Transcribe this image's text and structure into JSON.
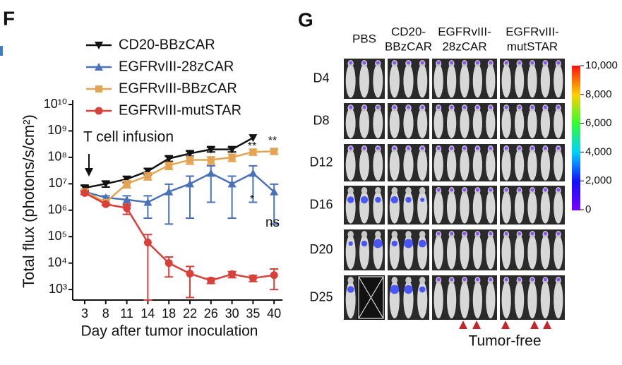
{
  "panel_f_label": "F",
  "chart_data": {
    "type": "line",
    "y_label": "Total flux (photons/s/cm²)",
    "x_label": "Day after tumor inoculation",
    "categories": [
      3,
      8,
      11,
      14,
      18,
      22,
      26,
      30,
      35,
      40
    ],
    "log_y": true,
    "ylim": [
      400,
      10000000000
    ],
    "yticks": [
      {
        "value": 1000,
        "label": "10³"
      },
      {
        "value": 10000,
        "label": "10⁴"
      },
      {
        "value": 100000,
        "label": "10⁵"
      },
      {
        "value": 1000000,
        "label": "10⁶"
      },
      {
        "value": 10000000,
        "label": "10⁷"
      },
      {
        "value": 100000000,
        "label": "10⁸"
      },
      {
        "value": 1000000000,
        "label": "10⁹"
      },
      {
        "value": 10000000000,
        "label": "10¹⁰"
      }
    ],
    "series": [
      {
        "name": "CD20-BBzCAR",
        "color": "#111111",
        "marker": "triangle-down",
        "values": [
          7000000,
          10000000,
          15000000,
          30000000,
          90000000,
          140000000,
          200000000,
          200000000,
          550000000,
          null
        ],
        "errors": [
          1500000,
          2500000,
          4000000,
          8000000,
          20000000,
          30000000,
          40000000,
          40000000,
          0,
          null
        ]
      },
      {
        "name": "EGFRvIII-28zCAR",
        "color": "#4a72b8",
        "marker": "triangle-up",
        "values": [
          5000000,
          3000000,
          2500000,
          2000000,
          5000000,
          10000000,
          25000000,
          10000000,
          25000000,
          5000000
        ],
        "errors": [
          1000000,
          500000,
          1000000,
          1500000,
          4700000,
          9500000,
          23000000,
          9500000,
          23000000,
          4700000
        ]
      },
      {
        "name": "EGFRvIII-BBzCAR",
        "color": "#e3a553",
        "marker": "square",
        "values": [
          5000000,
          2000000,
          10000000,
          20000000,
          50000000,
          80000000,
          80000000,
          100000000,
          160000000,
          170000000
        ],
        "errors": [
          1000000,
          500000,
          3000000,
          6000000,
          15000000,
          25000000,
          25000000,
          30000000,
          40000000,
          40000000
        ]
      },
      {
        "name": "EGFRvIII-mutSTAR",
        "color": "#d9403a",
        "marker": "circle",
        "values": [
          4500000,
          1700000,
          1200000,
          60000,
          10000,
          4000,
          2200,
          3800,
          2700,
          3500
        ],
        "errors": [
          500000,
          200000,
          500000,
          60000,
          7000,
          3500,
          500,
          1000,
          700,
          2500
        ]
      }
    ],
    "annotations": [
      "T cell infusion",
      "**",
      "**",
      "*",
      "ns"
    ]
  },
  "panel_g": {
    "label": "G",
    "columns": [
      [
        "PBS"
      ],
      [
        "CD20-",
        "BBzCAR"
      ],
      [
        "EGFRvIII-",
        "28zCAR"
      ],
      [
        "EGFRvIII-",
        "mutSTAR"
      ]
    ],
    "rows": [
      "D4",
      "D8",
      "D12",
      "D16",
      "D20",
      "D25"
    ],
    "colorbar_ticks": [
      "10,000",
      "8,000",
      "6,000",
      "4,000",
      "2,000",
      "0"
    ],
    "footer": "Tumor-free"
  }
}
